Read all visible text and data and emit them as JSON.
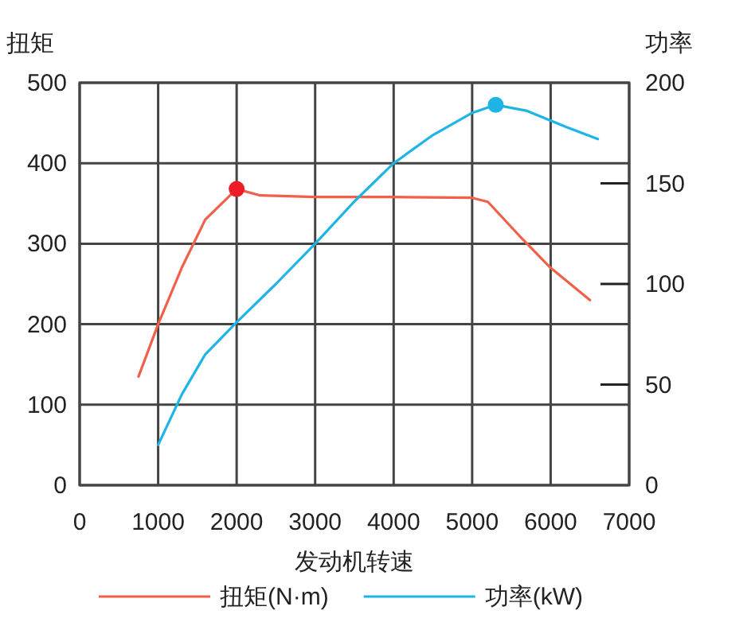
{
  "chart_data": {
    "type": "line",
    "ylabel": "扭矩",
    "y2label": "功率",
    "xlabel": "发动机转速",
    "xlim": [
      0,
      7000
    ],
    "xticks": [
      0,
      1000,
      2000,
      3000,
      4000,
      5000,
      6000,
      7000
    ],
    "ylim": [
      0,
      500
    ],
    "yticks": [
      0,
      100,
      200,
      300,
      400,
      500
    ],
    "y2lim": [
      0,
      200
    ],
    "y2ticks": [
      0,
      50,
      100,
      150,
      200
    ],
    "grid": true,
    "legend": "bottom",
    "line_style": "solid",
    "marker": "none",
    "series": [
      {
        "name": "扭矩(N·m)",
        "color": "#f0604a",
        "x": [
          750,
          1000,
          1300,
          1600,
          2000,
          2300,
          3000,
          4000,
          5000,
          5200,
          5600,
          6000,
          6500
        ],
        "values": [
          135,
          200,
          270,
          330,
          368,
          360,
          358,
          358,
          357,
          352,
          310,
          270,
          230
        ]
      },
      {
        "name": "功率(kW)",
        "color": "#1eb4e6",
        "axis": "y2",
        "x": [
          1000,
          1300,
          1600,
          2000,
          2500,
          3000,
          3500,
          4000,
          4500,
          5000,
          5300,
          5700,
          6200,
          6600
        ],
        "values": [
          20,
          45,
          65,
          81,
          100,
          120,
          141,
          160,
          174,
          185,
          189,
          186,
          178,
          172
        ]
      },
      {
        "type": "scatter",
        "color": "#ee1c25",
        "marker": "circle",
        "x": [
          2000
        ],
        "values": [
          368
        ]
      },
      {
        "type": "scatter",
        "color": "#1eb4e6",
        "marker": "circle",
        "axis": "y2",
        "x": [
          5300
        ],
        "values": [
          189
        ]
      }
    ]
  }
}
